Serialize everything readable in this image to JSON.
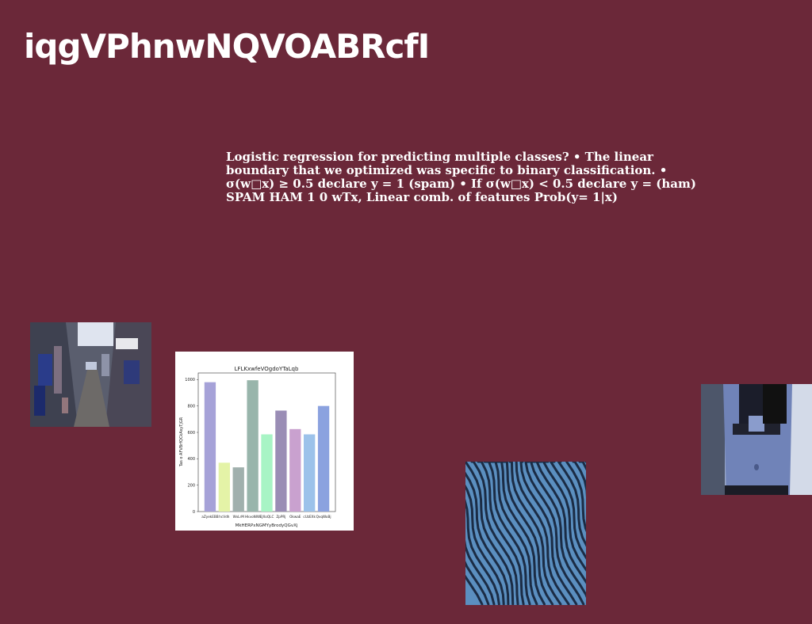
{
  "slide": {
    "title": "iqgVPhnwNQVOABRcfI",
    "body": "Logistic regression for predicting multiple classes? • The linear boundary that we optimized was specific to binary classification. • σ(w□x) ≥ 0.5 declare y = 1 (spam) • If σ(w□x) < 0.5 declare y = (ham) SPAM HAM 1 0 wTx, Linear comb. of features Prob(y= 1|x)"
  },
  "images": {
    "street": {
      "icon": "street-photo"
    },
    "sand": {
      "icon": "sand-dune-photo"
    },
    "person": {
      "icon": "person-photo"
    }
  },
  "chart_data": {
    "type": "bar",
    "title": "LFLKxwfeVOgdoYTaLqb",
    "xlabel": "MkHERPxNGMYyBrodyQGvXj",
    "ylabel": "Tas o AFVBrfQCkAsyTjGR",
    "categories": [
      "aZyekEBB",
      "hcVdh",
      "WxLrM",
      "HkvoNIW",
      "EJXoQLC",
      "ZpPRj",
      "OkwaE",
      "cUzEXk",
      "QvqWoBj"
    ],
    "values": [
      980,
      370,
      335,
      995,
      585,
      765,
      625,
      585,
      800
    ],
    "colors": [
      "#a6a2d8",
      "#e4f3a7",
      "#a0b0ad",
      "#98b5ab",
      "#a8f4c5",
      "#9a8db5",
      "#c9a1cf",
      "#9cc2ea",
      "#8ba2df"
    ],
    "ylim": [
      0,
      1050
    ],
    "yticks": [
      0,
      200,
      400,
      600,
      800,
      1000
    ],
    "grid": false,
    "legend": "none"
  }
}
